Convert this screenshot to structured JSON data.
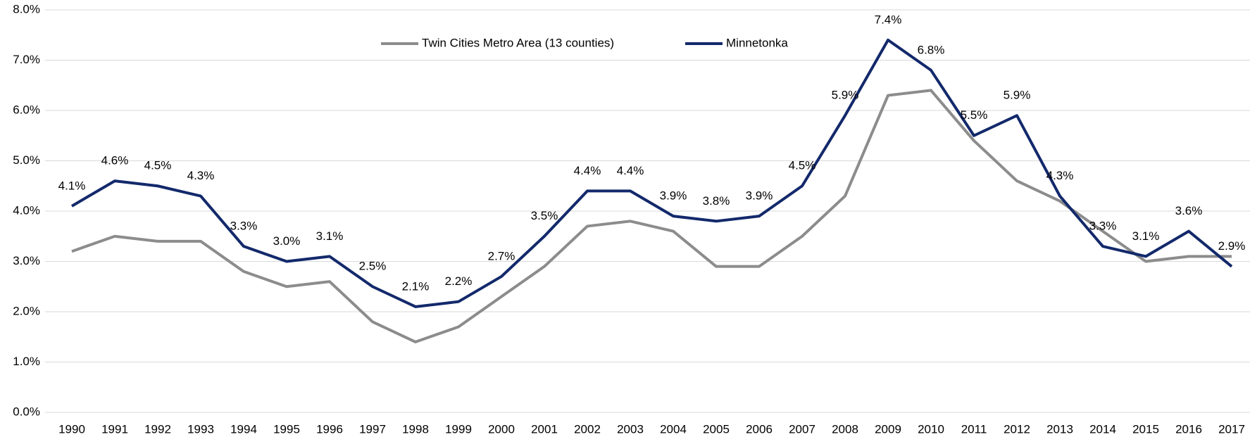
{
  "chart_data": {
    "type": "line",
    "categories": [
      "1990",
      "1991",
      "1992",
      "1993",
      "1994",
      "1995",
      "1996",
      "1997",
      "1998",
      "1999",
      "2000",
      "2001",
      "2002",
      "2003",
      "2004",
      "2005",
      "2006",
      "2007",
      "2008",
      "2009",
      "2010",
      "2011",
      "2012",
      "2013",
      "2014",
      "2015",
      "2016",
      "2017"
    ],
    "series": [
      {
        "name": "Twin Cities Metro Area (13 counties)",
        "color": "#8c8c8c",
        "values": [
          3.2,
          3.5,
          3.4,
          3.4,
          2.8,
          2.5,
          2.6,
          1.8,
          1.4,
          1.7,
          2.3,
          2.9,
          3.7,
          3.8,
          3.6,
          2.9,
          2.9,
          3.5,
          4.3,
          6.3,
          6.4,
          5.4,
          4.6,
          4.2,
          3.6,
          3.0,
          3.1,
          3.1
        ]
      },
      {
        "name": "Minnetonka",
        "color": "#13296b",
        "values": [
          4.1,
          4.6,
          4.5,
          4.3,
          3.3,
          3.0,
          3.1,
          2.5,
          2.1,
          2.2,
          2.7,
          3.5,
          4.4,
          4.4,
          3.9,
          3.8,
          3.9,
          4.5,
          5.9,
          7.4,
          6.8,
          5.5,
          5.9,
          4.3,
          3.3,
          3.1,
          3.6,
          2.9
        ],
        "value_labels": [
          "4.1%",
          "4.6%",
          "4.5%",
          "4.3%",
          "3.3%",
          "3.0%",
          "3.1%",
          "2.5%",
          "2.1%",
          "2.2%",
          "2.7%",
          "3.5%",
          "4.4%",
          "4.4%",
          "3.9%",
          "3.8%",
          "3.9%",
          "4.5%",
          "5.9%",
          "7.4%",
          "6.8%",
          "5.5%",
          "5.9%",
          "4.3%",
          "3.3%",
          "3.1%",
          "3.6%",
          "2.9%"
        ]
      }
    ],
    "ylim": [
      0,
      8
    ],
    "yticks": [
      {
        "value": 0,
        "label": "0.0%"
      },
      {
        "value": 1,
        "label": "1.0%"
      },
      {
        "value": 2,
        "label": "2.0%"
      },
      {
        "value": 3,
        "label": "3.0%"
      },
      {
        "value": 4,
        "label": "4.0%"
      },
      {
        "value": 5,
        "label": "5.0%"
      },
      {
        "value": 6,
        "label": "6.0%"
      },
      {
        "value": 7,
        "label": "7.0%"
      },
      {
        "value": 8,
        "label": "8.0%"
      }
    ],
    "grid": true,
    "legend": "top"
  }
}
